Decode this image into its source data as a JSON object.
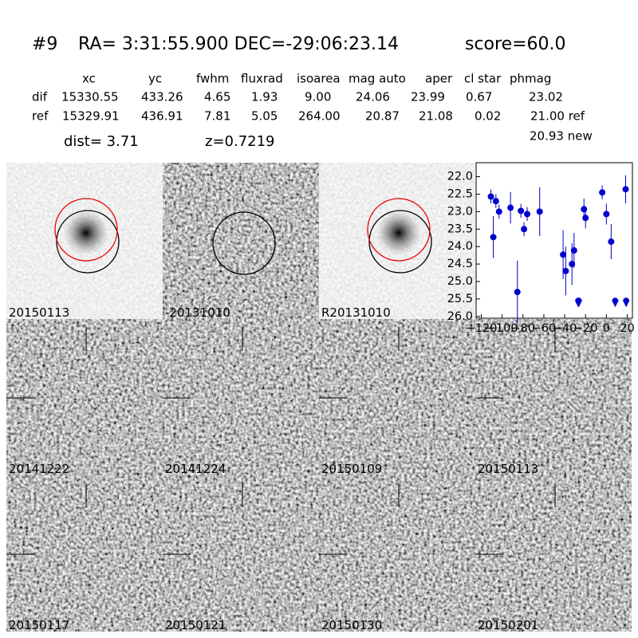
{
  "header": {
    "id": "#9",
    "coords": "RA= 3:31:55.900 DEC=-29:06:23.14",
    "score": "score=60.0"
  },
  "table": {
    "columns": [
      "xc",
      "yc",
      "fwhm",
      "fluxrad",
      "isoarea",
      "mag auto",
      "aper",
      "cl star",
      "phmag"
    ],
    "rows": [
      [
        "dif",
        "15330.55",
        "433.26",
        "4.65",
        "1.93",
        "9.00",
        "24.06",
        "23.99",
        "0.67",
        "23.02"
      ],
      [
        "ref",
        "15329.91",
        "436.91",
        "7.81",
        "5.05",
        "264.00",
        "20.87",
        "21.08",
        "0.02",
        "21.00 ref"
      ]
    ],
    "new_mag": "20.93 new"
  },
  "dist": "dist=  3.71",
  "redshift": "z=0.7219",
  "panels": [
    {
      "label": "20150113",
      "color": "#000000"
    },
    {
      "label": "-20131010",
      "color": "#000000"
    },
    {
      "label": "R20131010",
      "color": "#000000"
    },
    {
      "label": "20141222",
      "color": "#000000"
    },
    {
      "label": "20141224",
      "color": "#000000"
    },
    {
      "label": "20150109",
      "color": "#000000"
    },
    {
      "label": "20150113",
      "color": "#ff0000"
    },
    {
      "label": "20150117",
      "color": "#000000"
    },
    {
      "label": "20150121",
      "color": "#000000"
    },
    {
      "label": "20150130",
      "color": "#000000"
    },
    {
      "label": "20150201",
      "color": "#000000"
    }
  ],
  "chart_data": {
    "type": "scatter",
    "color": "#0000cc",
    "xlim": [
      -125,
      25
    ],
    "ylim": [
      26.05,
      21.6
    ],
    "xticks": [
      {
        "value": -120,
        "label": "−120"
      },
      {
        "value": -100,
        "label": "−100"
      },
      {
        "value": -80,
        "label": "−80"
      },
      {
        "value": -60,
        "label": "−60"
      },
      {
        "value": -40,
        "label": "−40"
      },
      {
        "value": -20,
        "label": "−20"
      },
      0,
      20
    ],
    "yticks": [
      {
        "value": 22,
        "label": "22.0"
      },
      22.5,
      {
        "value": 23,
        "label": "23.0"
      },
      23.5,
      {
        "value": 24,
        "label": "24.0"
      },
      24.5,
      {
        "value": 25,
        "label": "25.0"
      },
      25.5,
      {
        "value": 26,
        "label": "26.0"
      }
    ],
    "series": [
      {
        "x": [
          -110.8,
          -108.5,
          -106,
          -103,
          -92,
          -85.4,
          -82,
          -79,
          -76,
          -64,
          -41.5,
          -39,
          -33,
          -31,
          -21.5,
          -20,
          -4,
          0,
          4.6,
          18.5
        ],
        "values": [
          22.57,
          23.73,
          22.7,
          23.0,
          22.89,
          25.3,
          22.98,
          23.5,
          23.07,
          23.0,
          24.23,
          24.7,
          24.5,
          24.11,
          22.93,
          23.18,
          22.45,
          23.07,
          23.86,
          22.36
        ],
        "errors": [
          0.2,
          0.6,
          0.2,
          0.2,
          0.45,
          0.9,
          0.2,
          0.2,
          0.2,
          0.7,
          0.7,
          0.7,
          0.6,
          0.5,
          0.3,
          0.3,
          0.2,
          0.3,
          0.5,
          0.4
        ]
      },
      {
        "x": [
          -27,
          -26.5,
          8.5,
          19
        ],
        "values": [
          25.6,
          25.6,
          25.6,
          25.6
        ]
      }
    ]
  }
}
